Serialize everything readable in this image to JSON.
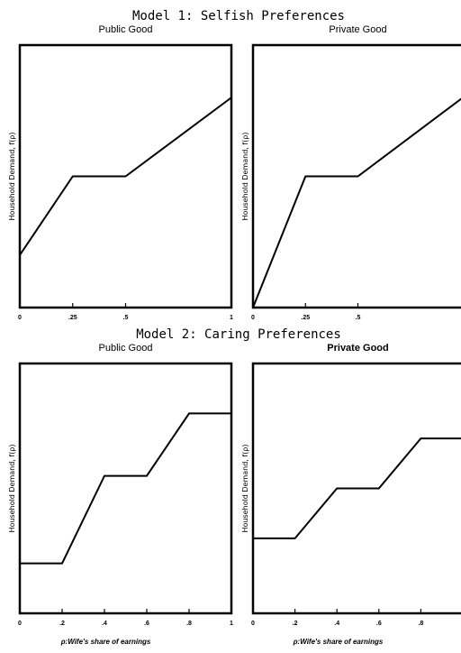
{
  "models": [
    {
      "title": "Model 1: Selfish Preferences"
    },
    {
      "title": "Model 2: Caring Preferences"
    }
  ],
  "chart_data": [
    {
      "type": "line",
      "model": "Model 1: Selfish Preferences",
      "title": "Public Good",
      "ylabel": "Household Demand, f(ρ)",
      "xlabel": "",
      "xlim": [
        0,
        1
      ],
      "xticks": [
        0,
        0.25,
        0.5,
        1
      ],
      "xtick_labels": [
        "0",
        ".25",
        ".5",
        "1"
      ],
      "ylim": [
        0,
        1
      ],
      "x": [
        0,
        0.25,
        0.5,
        1
      ],
      "y": [
        0.2,
        0.5,
        0.5,
        0.8
      ]
    },
    {
      "type": "line",
      "model": "Model 1: Selfish Preferences",
      "title": "Private Good",
      "ylabel": "Household Demand, f(ρ)",
      "xlabel": "",
      "xlim": [
        0,
        1
      ],
      "xticks": [
        0,
        0.25,
        0.5,
        1
      ],
      "xtick_labels": [
        "0",
        ".25",
        ".5",
        ""
      ],
      "ylim": [
        0,
        1
      ],
      "x": [
        0,
        0.25,
        0.5,
        1
      ],
      "y": [
        0,
        0.5,
        0.5,
        0.8
      ]
    },
    {
      "type": "line",
      "model": "Model 2: Caring Preferences",
      "title": "Public Good",
      "ylabel": "Household Demand, f(ρ)",
      "xlabel": "ρ:Wife's share of earnings",
      "xlim": [
        0,
        1
      ],
      "xticks": [
        0,
        0.2,
        0.4,
        0.6,
        0.8,
        1
      ],
      "xtick_labels": [
        "0",
        ".2",
        ".4",
        ".6",
        ".8",
        "1"
      ],
      "ylim": [
        0,
        1
      ],
      "x": [
        0,
        0.2,
        0.4,
        0.6,
        0.8,
        1
      ],
      "y": [
        0.2,
        0.2,
        0.55,
        0.55,
        0.8,
        0.8
      ]
    },
    {
      "type": "line",
      "model": "Model 2: Caring Preferences",
      "title": "Private Good",
      "title_bold": true,
      "ylabel": "Household Demand, f(ρ)",
      "xlabel": "ρ:Wife's share of earnings",
      "xlim": [
        0,
        1
      ],
      "xticks": [
        0,
        0.2,
        0.4,
        0.6,
        0.8,
        1
      ],
      "xtick_labels": [
        "0",
        ".2",
        ".4",
        ".6",
        ".8",
        ""
      ],
      "ylim": [
        0,
        1
      ],
      "x": [
        0,
        0.2,
        0.4,
        0.6,
        0.8,
        1
      ],
      "y": [
        0.3,
        0.3,
        0.5,
        0.5,
        0.7,
        0.7
      ]
    }
  ]
}
